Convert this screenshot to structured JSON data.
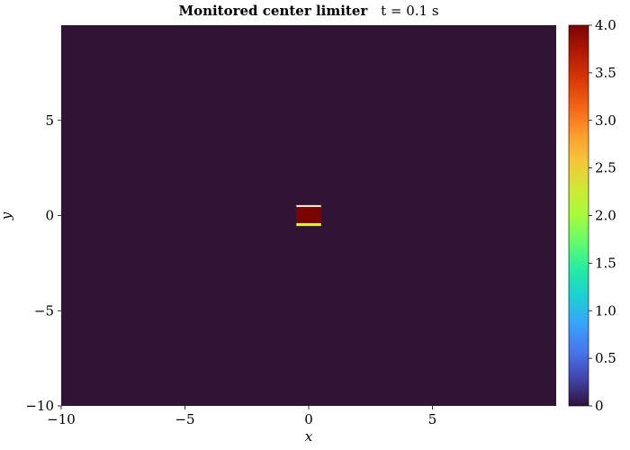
{
  "chart_data": {
    "type": "heatmap",
    "title_bold": "Monitored center limiter",
    "title_rest": "t = 0.1 s",
    "xlabel": "x",
    "ylabel": "y",
    "xlim": [
      -10,
      10
    ],
    "ylim": [
      -10,
      10
    ],
    "xticks": [
      -10,
      -5,
      0,
      5
    ],
    "xtick_labels": [
      "−10",
      "−5",
      "0",
      "5"
    ],
    "yticks": [
      -10,
      -5,
      0,
      5
    ],
    "ytick_labels": [
      "−10",
      "−5",
      "0",
      "5"
    ],
    "colormap": "turbo",
    "colormap_stops": [
      "#30123b",
      "#4145ab",
      "#4675ed",
      "#39a2fc",
      "#1bcfd4",
      "#24eca6",
      "#61fc6c",
      "#a4fc3b",
      "#d1e834",
      "#f3c63a",
      "#fe9b2d",
      "#f36315",
      "#d93806",
      "#b11901",
      "#7a0403"
    ],
    "background_value": 0.0,
    "background_color": "#311336",
    "colorbar": {
      "min": 0,
      "max": 4,
      "ticks": [
        0,
        0.5,
        1.0,
        1.5,
        2.0,
        2.5,
        3.0,
        3.5,
        4.0
      ],
      "tick_labels": [
        "0",
        "0.5",
        "1.0",
        "1.5",
        "2.0",
        "2.5",
        "3.0",
        "3.5",
        "4.0"
      ]
    },
    "features": [
      {
        "x": [
          -0.5,
          0.5
        ],
        "y": [
          -0.4,
          0.45
        ],
        "value": 4.0,
        "color": "#7a0403"
      },
      {
        "x": [
          -0.5,
          0.5
        ],
        "y": [
          -0.55,
          -0.4
        ],
        "value": 2.2,
        "color": "#d9f03c"
      },
      {
        "x": [
          -0.5,
          0.5
        ],
        "y": [
          0.45,
          0.55
        ],
        "value": 2.0,
        "color": "#f0e8c8"
      }
    ]
  }
}
